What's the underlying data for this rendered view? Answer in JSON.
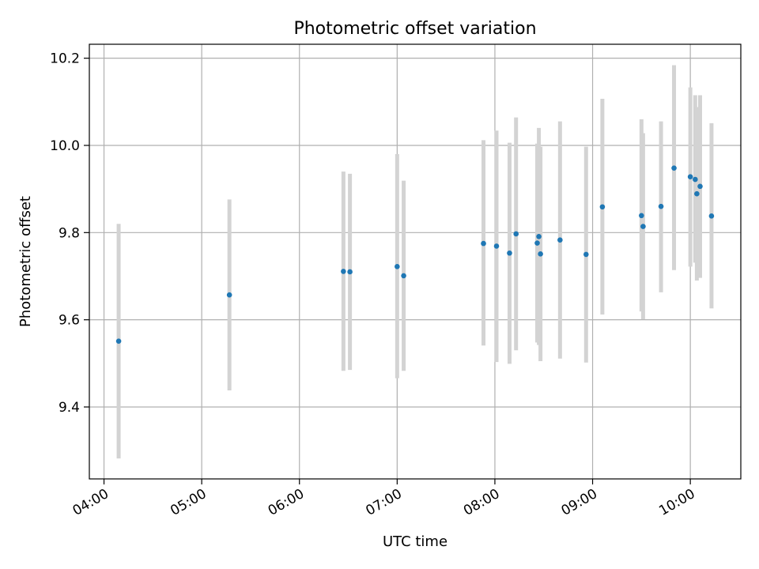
{
  "chart_data": {
    "type": "scatter",
    "title": "Photometric offset variation",
    "xlabel": "UTC time",
    "ylabel": "Photometric offset",
    "x_ticks": [
      "04:00",
      "05:00",
      "06:00",
      "07:00",
      "08:00",
      "09:00",
      "10:00"
    ],
    "y_ticks": [
      "9.4",
      "9.6",
      "9.8",
      "10.0",
      "10.2"
    ],
    "xlim": [
      "03:51",
      "10:31"
    ],
    "ylim": [
      9.235,
      10.232
    ],
    "grid": true,
    "colors": {
      "point": "#1f77b4",
      "errorbar": "#d3d3d3",
      "grid": "#b0b0b0"
    },
    "series": [
      {
        "points": [
          {
            "x": "04:09",
            "y": 9.551,
            "lo": 9.282,
            "hi": 9.82
          },
          {
            "x": "05:17",
            "y": 9.657,
            "lo": 9.438,
            "hi": 9.876
          },
          {
            "x": "06:27",
            "y": 9.711,
            "lo": 9.483,
            "hi": 9.94
          },
          {
            "x": "06:31",
            "y": 9.71,
            "lo": 9.485,
            "hi": 9.935
          },
          {
            "x": "07:00",
            "y": 9.722,
            "lo": 9.466,
            "hi": 9.98
          },
          {
            "x": "07:04",
            "y": 9.701,
            "lo": 9.483,
            "hi": 9.919
          },
          {
            "x": "07:53",
            "y": 9.775,
            "lo": 9.541,
            "hi": 10.012
          },
          {
            "x": "08:01",
            "y": 9.769,
            "lo": 9.503,
            "hi": 10.034
          },
          {
            "x": "08:09",
            "y": 9.753,
            "lo": 9.499,
            "hi": 10.006
          },
          {
            "x": "08:13",
            "y": 9.797,
            "lo": 9.53,
            "hi": 10.064
          },
          {
            "x": "08:26",
            "y": 9.776,
            "lo": 9.548,
            "hi": 10.004
          },
          {
            "x": "08:27",
            "y": 9.791,
            "lo": 9.542,
            "hi": 10.04
          },
          {
            "x": "08:28",
            "y": 9.751,
            "lo": 9.505,
            "hi": 9.997
          },
          {
            "x": "08:40",
            "y": 9.783,
            "lo": 9.511,
            "hi": 10.055
          },
          {
            "x": "08:56",
            "y": 9.75,
            "lo": 9.502,
            "hi": 9.997
          },
          {
            "x": "09:06",
            "y": 9.859,
            "lo": 9.612,
            "hi": 10.107
          },
          {
            "x": "09:30",
            "y": 9.839,
            "lo": 9.619,
            "hi": 10.06
          },
          {
            "x": "09:31",
            "y": 9.814,
            "lo": 9.601,
            "hi": 10.028
          },
          {
            "x": "09:42",
            "y": 9.86,
            "lo": 9.663,
            "hi": 10.055
          },
          {
            "x": "09:50",
            "y": 9.948,
            "lo": 9.714,
            "hi": 10.184
          },
          {
            "x": "10:00",
            "y": 9.928,
            "lo": 9.722,
            "hi": 10.133
          },
          {
            "x": "10:03",
            "y": 9.922,
            "lo": 9.731,
            "hi": 10.115
          },
          {
            "x": "10:04",
            "y": 9.889,
            "lo": 9.69,
            "hi": 10.088
          },
          {
            "x": "10:06",
            "y": 9.906,
            "lo": 9.696,
            "hi": 10.115
          },
          {
            "x": "10:13",
            "y": 9.838,
            "lo": 9.626,
            "hi": 10.051
          }
        ]
      }
    ]
  }
}
